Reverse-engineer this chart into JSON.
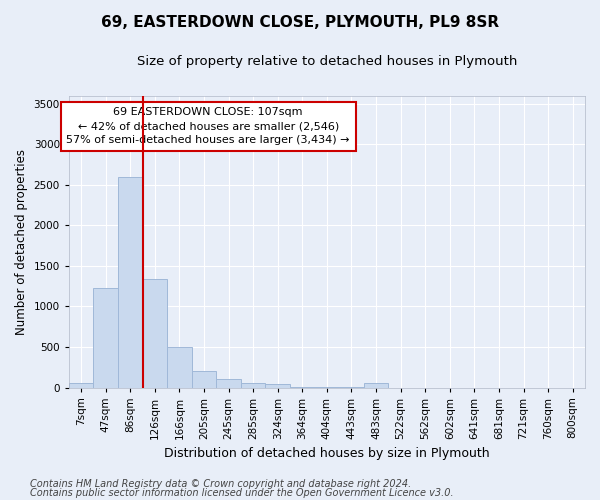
{
  "title": "69, EASTERDOWN CLOSE, PLYMOUTH, PL9 8SR",
  "subtitle": "Size of property relative to detached houses in Plymouth",
  "xlabel": "Distribution of detached houses by size in Plymouth",
  "ylabel": "Number of detached properties",
  "categories": [
    "7sqm",
    "47sqm",
    "86sqm",
    "126sqm",
    "166sqm",
    "205sqm",
    "245sqm",
    "285sqm",
    "324sqm",
    "364sqm",
    "404sqm",
    "443sqm",
    "483sqm",
    "522sqm",
    "562sqm",
    "602sqm",
    "641sqm",
    "681sqm",
    "721sqm",
    "760sqm",
    "800sqm"
  ],
  "values": [
    50,
    1230,
    2590,
    1340,
    500,
    200,
    110,
    55,
    40,
    5,
    5,
    5,
    50,
    0,
    0,
    0,
    0,
    0,
    0,
    0,
    0
  ],
  "bar_color": "#c9d9ee",
  "bar_edge_color": "#a0b8d8",
  "vline_x": 3,
  "vline_color": "#cc0000",
  "ylim": [
    0,
    3600
  ],
  "yticks": [
    0,
    500,
    1000,
    1500,
    2000,
    2500,
    3000,
    3500
  ],
  "annotation_text": "69 EASTERDOWN CLOSE: 107sqm\n← 42% of detached houses are smaller (2,546)\n57% of semi-detached houses are larger (3,434) →",
  "annotation_box_color": "#ffffff",
  "annotation_box_edge": "#cc0000",
  "footer1": "Contains HM Land Registry data © Crown copyright and database right 2024.",
  "footer2": "Contains public sector information licensed under the Open Government Licence v3.0.",
  "bg_color": "#e8eef8",
  "grid_color": "#ffffff",
  "title_fontsize": 11,
  "subtitle_fontsize": 9.5,
  "ylabel_fontsize": 8.5,
  "xlabel_fontsize": 9,
  "tick_fontsize": 7.5,
  "footer_fontsize": 7,
  "annot_fontsize": 8
}
